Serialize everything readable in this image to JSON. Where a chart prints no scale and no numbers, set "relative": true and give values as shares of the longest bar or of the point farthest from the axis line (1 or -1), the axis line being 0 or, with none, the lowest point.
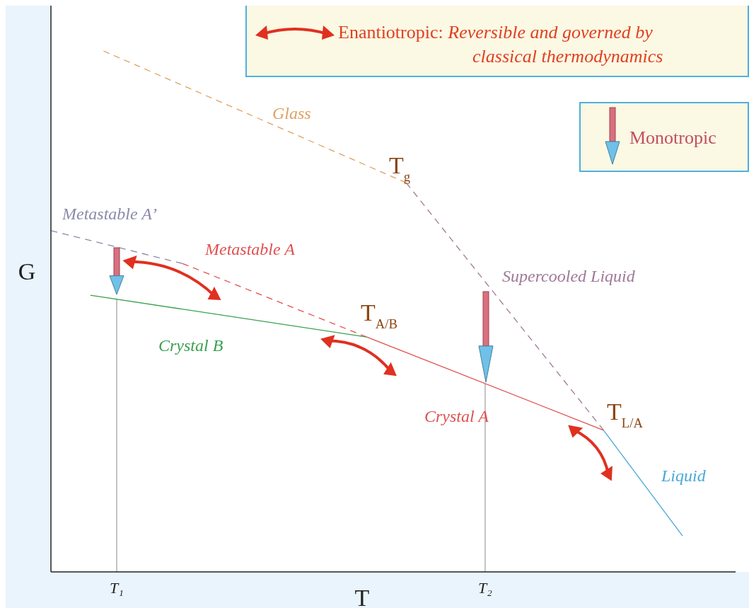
{
  "chart_data": {
    "type": "line",
    "relative": true,
    "xlabel": "T",
    "ylabel": "G",
    "legend": false,
    "categories": [
      null,
      null,
      null,
      null,
      null,
      "T₁",
      null,
      null,
      null,
      null,
      null,
      null,
      null,
      null,
      null,
      null,
      null,
      null,
      null,
      null,
      null,
      null,
      null,
      null,
      null,
      null,
      null,
      null,
      null,
      null,
      null,
      null,
      null,
      "T₂",
      null,
      null,
      null,
      null,
      null,
      null,
      null,
      null,
      null,
      null,
      null,
      null,
      null,
      null,
      null
    ],
    "series": [
      {
        "name": "Glass",
        "color": "#e0a060",
        "line_style": "dashed",
        "values": [
          null,
          null,
          null,
          null,
          1.0,
          null,
          null,
          null,
          null,
          null,
          null,
          null,
          null,
          null,
          null,
          null,
          null,
          null,
          null,
          null,
          null,
          null,
          null,
          null,
          null,
          null,
          null,
          0.747,
          null,
          null,
          null,
          null,
          null,
          null,
          null,
          null,
          null,
          null,
          null,
          null,
          null,
          null,
          null,
          null,
          null,
          null,
          null,
          null,
          null
        ]
      },
      {
        "name": "Supercooled Liquid",
        "color": "#a07898",
        "line_style": "dashed",
        "values": [
          null,
          null,
          null,
          null,
          null,
          null,
          null,
          null,
          null,
          null,
          null,
          null,
          null,
          null,
          null,
          null,
          null,
          null,
          null,
          null,
          null,
          null,
          null,
          null,
          null,
          null,
          null,
          0.747,
          null,
          null,
          null,
          null,
          null,
          null,
          null,
          null,
          null,
          null,
          null,
          null,
          null,
          null,
          0.272,
          null,
          null,
          null,
          null,
          null,
          null
        ]
      },
      {
        "name": "Liquid",
        "color": "#4aa8d8",
        "line_style": "solid",
        "values": [
          null,
          null,
          null,
          null,
          null,
          null,
          null,
          null,
          null,
          null,
          null,
          null,
          null,
          null,
          null,
          null,
          null,
          null,
          null,
          null,
          null,
          null,
          null,
          null,
          null,
          null,
          null,
          null,
          null,
          null,
          null,
          null,
          null,
          null,
          null,
          null,
          null,
          null,
          null,
          null,
          null,
          null,
          0.272,
          null,
          null,
          null,
          null,
          null,
          0.069
        ]
      },
      {
        "name": "Metastable A’",
        "color": "#8a8aaa",
        "line_style": "dashed",
        "values": [
          0.655,
          null,
          null,
          null,
          null,
          null,
          null,
          null,
          null,
          null,
          0.592,
          null,
          null,
          null,
          null,
          null,
          null,
          null,
          null,
          null,
          null,
          null,
          null,
          null,
          null,
          null,
          null,
          null,
          null,
          null,
          null,
          null,
          null,
          null,
          null,
          null,
          null,
          null,
          null,
          null,
          null,
          null,
          null,
          null,
          null,
          null,
          null,
          null,
          null
        ]
      },
      {
        "name": "Metastable A",
        "color": "#e05050",
        "line_style": "dashed",
        "values": [
          null,
          null,
          null,
          null,
          null,
          null,
          null,
          null,
          null,
          null,
          0.592,
          null,
          null,
          null,
          null,
          null,
          null,
          null,
          null,
          null,
          null,
          null,
          null,
          null,
          0.451,
          null,
          null,
          null,
          null,
          null,
          null,
          null,
          null,
          null,
          null,
          null,
          null,
          null,
          null,
          null,
          null,
          null,
          null,
          null,
          null,
          null,
          null,
          null,
          null
        ]
      },
      {
        "name": "Crystal B",
        "color": "#3aa050",
        "line_style": "solid",
        "values": [
          null,
          null,
          null,
          0.531,
          null,
          null,
          null,
          null,
          null,
          null,
          null,
          null,
          null,
          null,
          null,
          null,
          null,
          null,
          null,
          null,
          null,
          null,
          null,
          null,
          0.451,
          null,
          null,
          null,
          null,
          null,
          null,
          null,
          null,
          null,
          null,
          null,
          null,
          null,
          null,
          null,
          null,
          null,
          null,
          null,
          null,
          null,
          null,
          null,
          null
        ]
      },
      {
        "name": "Crystal A",
        "color": "#e05050",
        "line_style": "solid",
        "values": [
          null,
          null,
          null,
          null,
          null,
          null,
          null,
          null,
          null,
          null,
          null,
          null,
          null,
          null,
          null,
          null,
          null,
          null,
          null,
          null,
          null,
          null,
          null,
          null,
          0.451,
          null,
          null,
          null,
          null,
          null,
          null,
          null,
          null,
          null,
          null,
          null,
          null,
          null,
          null,
          null,
          null,
          null,
          0.272,
          null,
          null,
          null,
          null,
          null,
          null
        ]
      }
    ],
    "ref_lines": [
      {
        "axis": "x",
        "value": "T₁",
        "color": "#b0b0b0"
      },
      {
        "axis": "x",
        "value": "T₂",
        "color": "#b0b0b0"
      }
    ],
    "annotations": [
      "T$_{g}$",
      "T$_{A/B}$",
      "T$_{L/A}$",
      "Enantiotropic:",
      "Reversible and governed by",
      "classical thermodynamics",
      "Monotropic"
    ]
  }
}
